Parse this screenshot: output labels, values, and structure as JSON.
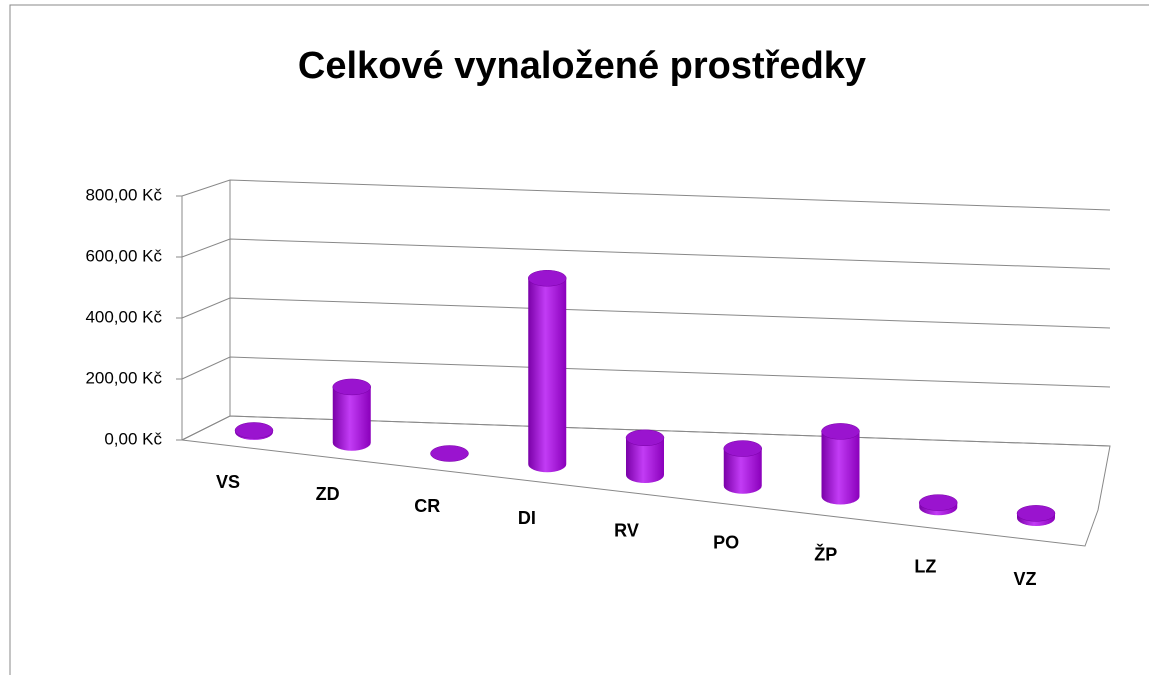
{
  "chart_data": {
    "type": "bar3d",
    "title": "Celkové vynaložené prostředky",
    "categories": [
      "VS",
      "ZD",
      "CR",
      "DI",
      "RV",
      "PO",
      "ŽP",
      "LZ",
      "VZ"
    ],
    "values": [
      5,
      180,
      0,
      600,
      120,
      120,
      210,
      15,
      15
    ],
    "color": "#a010d8",
    "ylim": [
      0,
      800
    ],
    "yticks": [
      {
        "value": 0,
        "label": "0,00 Kč"
      },
      {
        "value": 200,
        "label": "200,00 Kč"
      },
      {
        "value": 400,
        "label": "400,00 Kč"
      },
      {
        "value": 600,
        "label": "600,00 Kč"
      },
      {
        "value": 800,
        "label": "800,00 Kč"
      }
    ],
    "grid": true
  }
}
